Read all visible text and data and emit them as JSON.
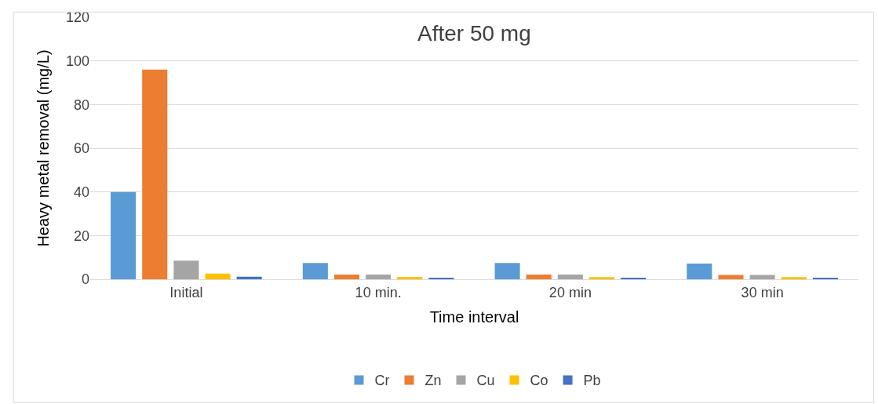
{
  "chart_data": {
    "type": "bar",
    "title": "After 50 mg",
    "xlabel": "Time interval",
    "ylabel": "Heavy metal removal (mg/L)",
    "categories": [
      "Initial",
      "10 min.",
      "20 min",
      "30 min"
    ],
    "series": [
      {
        "name": "Cr",
        "color": "#5b9bd5",
        "values": [
          40,
          7.5,
          7.5,
          7.2
        ]
      },
      {
        "name": "Zn",
        "color": "#ed7d31",
        "values": [
          96,
          2.2,
          2.2,
          2.0
        ]
      },
      {
        "name": "Cu",
        "color": "#a5a5a5",
        "values": [
          8.5,
          2.2,
          2.2,
          2.0
        ]
      },
      {
        "name": "Co",
        "color": "#ffc000",
        "values": [
          2.6,
          1.1,
          1.0,
          1.0
        ]
      },
      {
        "name": "Pb",
        "color": "#4472c4",
        "values": [
          1.2,
          0.6,
          0.6,
          0.6
        ]
      }
    ],
    "ylim": [
      0,
      120
    ],
    "yticks": [
      0,
      20,
      40,
      60,
      80,
      100,
      120
    ],
    "grid": "y",
    "legend": "bottom"
  }
}
